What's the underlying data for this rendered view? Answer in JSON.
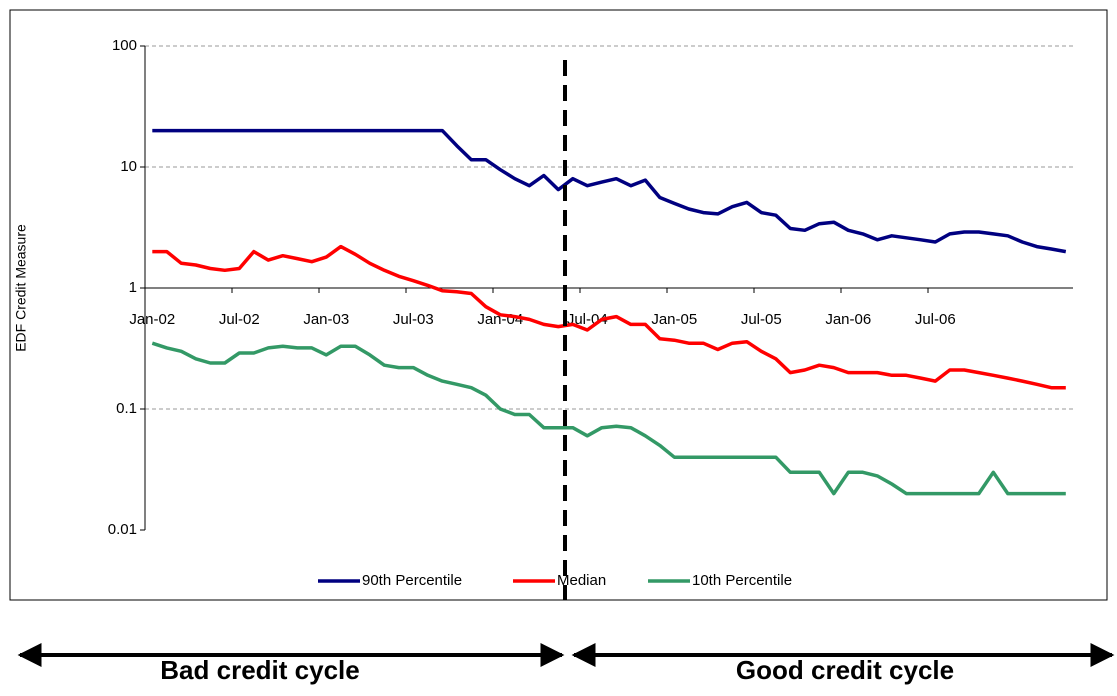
{
  "chart_data": {
    "type": "line",
    "y_label": "EDF Credit Measure",
    "log_scale": true,
    "grid": true,
    "legend": "bottom",
    "categories": [
      "Jan-02",
      null,
      null,
      null,
      null,
      null,
      "Jul-02",
      null,
      null,
      null,
      null,
      null,
      "Jan-03",
      null,
      null,
      null,
      null,
      null,
      "Jul-03",
      null,
      null,
      null,
      null,
      null,
      "Jan-04",
      null,
      null,
      null,
      null,
      null,
      "Jul-04",
      null,
      null,
      null,
      null,
      null,
      "Jan-05",
      null,
      null,
      null,
      null,
      null,
      "Jul-05",
      null,
      null,
      null,
      null,
      null,
      "Jan-06",
      null,
      null,
      null,
      null,
      null,
      "Jul-06",
      null,
      null,
      null,
      null,
      null,
      null,
      null,
      null,
      null
    ],
    "ylim": [
      0.01,
      100
    ],
    "yticks": [
      0.01,
      0.1,
      1,
      10,
      100
    ],
    "series": [
      {
        "name": "90th Percentile",
        "color": "#000080",
        "values": [
          20,
          20,
          20,
          20,
          20,
          20,
          20,
          20,
          20,
          20,
          20,
          20,
          20,
          20,
          20,
          20,
          20,
          20,
          20,
          20,
          20,
          15,
          11.5,
          11.5,
          9.5,
          8,
          7,
          8.5,
          6.5,
          8,
          7,
          7.5,
          8,
          7,
          7.8,
          5.6,
          5,
          4.5,
          4.2,
          4.1,
          4.7,
          5.1,
          4.2,
          4,
          3.1,
          3,
          3.4,
          3.5,
          3,
          2.8,
          2.5,
          2.7,
          2.6,
          2.5,
          2.4,
          2.8,
          2.9,
          2.9,
          2.8,
          2.7,
          2.4,
          2.2,
          2.1,
          2.0
        ]
      },
      {
        "name": "Median",
        "color": "#ff0000",
        "values": [
          2.0,
          2.0,
          1.6,
          1.55,
          1.45,
          1.4,
          1.45,
          2.0,
          1.7,
          1.85,
          1.75,
          1.65,
          1.8,
          2.2,
          1.9,
          1.6,
          1.4,
          1.25,
          1.15,
          1.05,
          0.95,
          0.93,
          0.9,
          0.7,
          0.6,
          0.58,
          0.55,
          0.5,
          0.48,
          0.5,
          0.45,
          0.55,
          0.58,
          0.5,
          0.5,
          0.38,
          0.37,
          0.35,
          0.35,
          0.31,
          0.35,
          0.36,
          0.3,
          0.26,
          0.2,
          0.21,
          0.23,
          0.22,
          0.2,
          0.2,
          0.2,
          0.19,
          0.19,
          0.18,
          0.17,
          0.21,
          0.21,
          0.2,
          0.19,
          0.18,
          0.17,
          0.16,
          0.15,
          0.15
        ]
      },
      {
        "name": "10th Percentile",
        "color": "#339966",
        "values": [
          0.35,
          0.32,
          0.3,
          0.26,
          0.24,
          0.24,
          0.29,
          0.29,
          0.32,
          0.33,
          0.32,
          0.32,
          0.28,
          0.33,
          0.33,
          0.28,
          0.23,
          0.22,
          0.22,
          0.19,
          0.17,
          0.16,
          0.15,
          0.13,
          0.1,
          0.09,
          0.09,
          0.07,
          0.07,
          0.07,
          0.06,
          0.07,
          0.072,
          0.07,
          0.06,
          0.05,
          0.04,
          0.04,
          0.04,
          0.04,
          0.04,
          0.04,
          0.04,
          0.04,
          0.03,
          0.03,
          0.03,
          0.02,
          0.03,
          0.03,
          0.028,
          0.024,
          0.02,
          0.02,
          0.02,
          0.02,
          0.02,
          0.02,
          0.03,
          0.02,
          0.02,
          0.02,
          0.02,
          0.02
        ]
      }
    ],
    "annotations": [
      "Bad credit cycle",
      "Good credit cycle"
    ]
  }
}
